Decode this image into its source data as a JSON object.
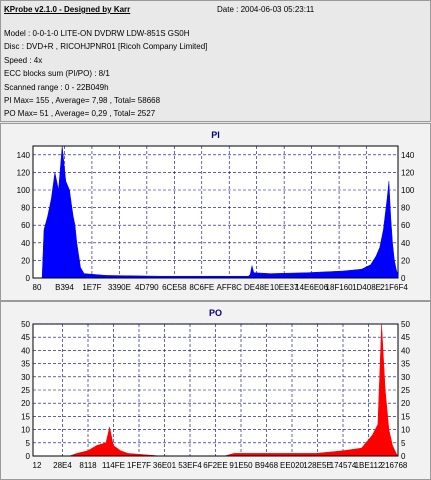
{
  "header": {
    "app_title": "KProbe v2.1.0 - Designed by Karr",
    "date": "Date : 2004-06-03 05:23:11",
    "model": "Model : 0-0-1-0 LITE-ON DVDRW LDW-851S   GS0H",
    "disc": "Disc : DVD+R , RICOHJPNR01 [Ricoh Company Limited]",
    "speed": "Speed : 4x",
    "ecc": "ECC blocks sum (PI/PO) : 8/1",
    "scanned": "Scanned range : 0 - 22B049h",
    "pi_stats": "PI Max= 155 , Average= 7,98 , Total= 58668",
    "po_stats": "PO Max= 51 , Average= 0,29 , Total= 2527"
  },
  "colors": {
    "pi": "#0000ff",
    "po": "#ff0000",
    "pi_title": "#000080",
    "po_title": "#000080",
    "grid": "#000080",
    "plot_bg": "#ffffff"
  },
  "chart_data": [
    {
      "type": "area",
      "title": "PI",
      "ylim": [
        0,
        150
      ],
      "yticks": [
        0,
        20,
        40,
        60,
        80,
        100,
        120,
        140
      ],
      "xticks": [
        "80",
        "B394",
        "1E7F",
        "3390E",
        "4D790",
        "6CE58",
        "8C6FE",
        "AFF8C",
        "DE48E",
        "10EE37",
        "14E6E06",
        "18F160",
        "1D408E",
        "21F6F4"
      ],
      "grid": true,
      "series": [
        {
          "values": [
            [
              0,
              0
            ],
            [
              5,
              0
            ],
            [
              6,
              55
            ],
            [
              8,
              70
            ],
            [
              10,
              90
            ],
            [
              12,
              120
            ],
            [
              14,
              100
            ],
            [
              16,
              155
            ],
            [
              18,
              110
            ],
            [
              20,
              100
            ],
            [
              21,
              85
            ],
            [
              22,
              70
            ],
            [
              23,
              60
            ],
            [
              24,
              40
            ],
            [
              26,
              12
            ],
            [
              28,
              5
            ],
            [
              40,
              3
            ],
            [
              70,
              2
            ],
            [
              100,
              2
            ],
            [
              118,
              2
            ],
            [
              119,
              4
            ],
            [
              120,
              14
            ],
            [
              121,
              6
            ],
            [
              130,
              5
            ],
            [
              150,
              6
            ],
            [
              170,
              8
            ],
            [
              180,
              10
            ],
            [
              185,
              15
            ],
            [
              188,
              25
            ],
            [
              190,
              35
            ],
            [
              192,
              55
            ],
            [
              194,
              90
            ],
            [
              195,
              110
            ],
            [
              196,
              70
            ],
            [
              197,
              40
            ],
            [
              198,
              20
            ],
            [
              199,
              10
            ],
            [
              200,
              3
            ]
          ]
        }
      ]
    },
    {
      "type": "area",
      "title": "PO",
      "ylim": [
        0,
        50
      ],
      "yticks": [
        0,
        5,
        10,
        15,
        20,
        25,
        30,
        35,
        40,
        45,
        50
      ],
      "xticks": [
        "12",
        "28E4",
        "8118",
        "114FE",
        "1FE7F",
        "36E01",
        "53EF4",
        "6F2EE",
        "91E50",
        "B9468",
        "EE020",
        "128E5E",
        "174574",
        "1BE112",
        "216768"
      ],
      "grid": true,
      "series": [
        {
          "values": [
            [
              0,
              0
            ],
            [
              20,
              0
            ],
            [
              24,
              1
            ],
            [
              30,
              2
            ],
            [
              35,
              4
            ],
            [
              40,
              5
            ],
            [
              42,
              11
            ],
            [
              44,
              4
            ],
            [
              48,
              2
            ],
            [
              52,
              1
            ],
            [
              70,
              0
            ],
            [
              90,
              0
            ],
            [
              105,
              0
            ],
            [
              110,
              1
            ],
            [
              120,
              1
            ],
            [
              140,
              1
            ],
            [
              155,
              1
            ],
            [
              170,
              2
            ],
            [
              180,
              3
            ],
            [
              186,
              8
            ],
            [
              189,
              12
            ],
            [
              191,
              50
            ],
            [
              193,
              25
            ],
            [
              195,
              10
            ],
            [
              197,
              4
            ],
            [
              199,
              1
            ],
            [
              200,
              0
            ]
          ]
        }
      ]
    }
  ]
}
